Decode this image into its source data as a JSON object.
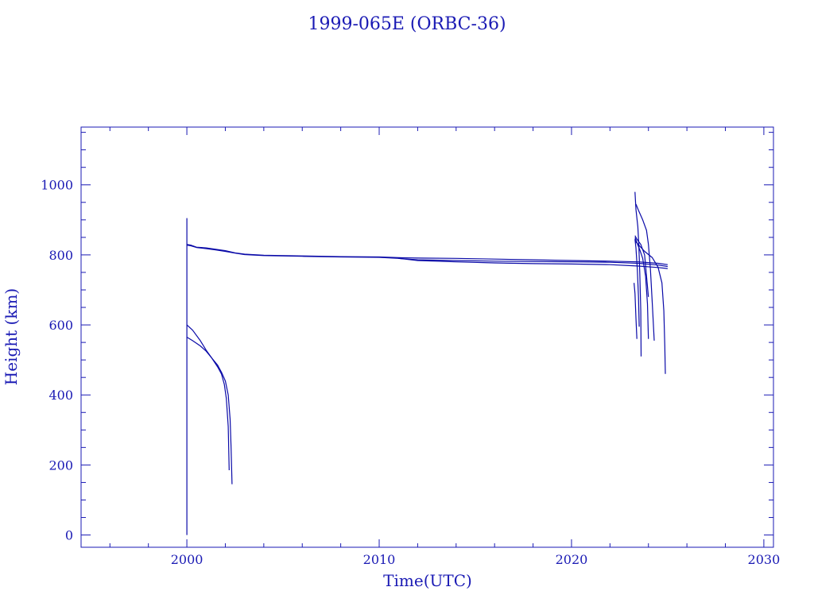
{
  "chart_data": {
    "type": "line",
    "title": "1999-065E (ORBC-36)",
    "xlabel": "Time(UTC)",
    "ylabel": "Height (km)",
    "xlim": [
      1994.5,
      2030.5
    ],
    "ylim": [
      -35,
      1165
    ],
    "x_ticks": [
      2000,
      2010,
      2020,
      2030
    ],
    "y_ticks": [
      0,
      200,
      400,
      600,
      800,
      1000
    ],
    "grid": false,
    "color": "#0a0aa8",
    "series": [
      {
        "x": [
          2000.0,
          2000.0
        ],
        "values": [
          0,
          905
        ]
      },
      {
        "x": [
          2000.0,
          2000.2,
          2000.5,
          2001.0,
          2001.5,
          2002.0,
          2002.5,
          2003.0,
          2004.0,
          2006.0,
          2008.0,
          2010.0,
          2011.0,
          2012.0,
          2014.0,
          2016.0,
          2018.0,
          2020.0,
          2022.0,
          2023.5,
          2024.5,
          2025.0
        ],
        "values": [
          830,
          828,
          822,
          820,
          816,
          812,
          806,
          802,
          799,
          797,
          795,
          794,
          792,
          791,
          790,
          788,
          786,
          784,
          782,
          780,
          776,
          772
        ]
      },
      {
        "x": [
          2000.0,
          2000.2,
          2000.5,
          2001.0,
          2001.5,
          2002.0,
          2002.5,
          2003.0,
          2004.0,
          2006.0,
          2008.0,
          2010.0,
          2011.0,
          2012.0,
          2014.0,
          2016.0,
          2018.0,
          2020.0,
          2022.0,
          2023.5,
          2024.5,
          2025.0
        ],
        "values": [
          828,
          826,
          821,
          818,
          814,
          810,
          805,
          801,
          798,
          796,
          794,
          793,
          790,
          786,
          784,
          782,
          781,
          780,
          779,
          776,
          771,
          767
        ]
      },
      {
        "x": [
          2011.0,
          2012.0,
          2014.0,
          2016.0,
          2018.0,
          2020.0,
          2022.0,
          2023.5,
          2024.5,
          2025.0
        ],
        "values": [
          790,
          784,
          780,
          777,
          775,
          774,
          772,
          768,
          764,
          761
        ]
      },
      {
        "x": [
          2000.0,
          2000.3,
          2000.7,
          2001.0,
          2001.3,
          2001.6,
          2001.8,
          2001.95,
          2002.05,
          2002.15,
          2002.2
        ],
        "values": [
          600,
          585,
          555,
          528,
          505,
          480,
          460,
          430,
          390,
          310,
          185
        ]
      },
      {
        "x": [
          2000.0,
          2000.3,
          2000.7,
          2001.0,
          2001.3,
          2001.6,
          2001.8,
          2002.0,
          2002.15,
          2002.25,
          2002.3,
          2002.35
        ],
        "values": [
          565,
          555,
          540,
          525,
          505,
          485,
          465,
          440,
          400,
          330,
          250,
          145
        ]
      },
      {
        "x": [
          2023.3,
          2023.35,
          2023.45,
          2023.5,
          2023.55,
          2023.6,
          2023.62
        ],
        "values": [
          980,
          930,
          880,
          830,
          750,
          640,
          510
        ]
      },
      {
        "x": [
          2023.35,
          2023.5,
          2023.7,
          2023.9,
          2024.0,
          2024.1,
          2024.2,
          2024.3
        ],
        "values": [
          945,
          925,
          900,
          870,
          830,
          760,
          660,
          555
        ]
      },
      {
        "x": [
          2023.3,
          2023.5,
          2023.8,
          2024.2,
          2024.5,
          2024.7,
          2024.8,
          2024.85,
          2024.88
        ],
        "values": [
          840,
          828,
          810,
          792,
          765,
          720,
          640,
          540,
          460
        ]
      },
      {
        "x": [
          2023.3,
          2023.4,
          2023.6,
          2023.8,
          2023.9,
          2024.0
        ],
        "values": [
          855,
          845,
          830,
          800,
          740,
          680
        ]
      },
      {
        "x": [
          2023.3,
          2023.4,
          2023.55,
          2023.7,
          2023.85,
          2023.95,
          2024.0
        ],
        "values": [
          850,
          835,
          815,
          790,
          740,
          660,
          560
        ]
      },
      {
        "x": [
          2023.3,
          2023.35,
          2023.42,
          2023.48,
          2023.52
        ],
        "values": [
          845,
          820,
          760,
          680,
          595
        ]
      },
      {
        "x": [
          2023.25,
          2023.3,
          2023.35,
          2023.4
        ],
        "values": [
          720,
          690,
          620,
          560
        ]
      }
    ]
  }
}
